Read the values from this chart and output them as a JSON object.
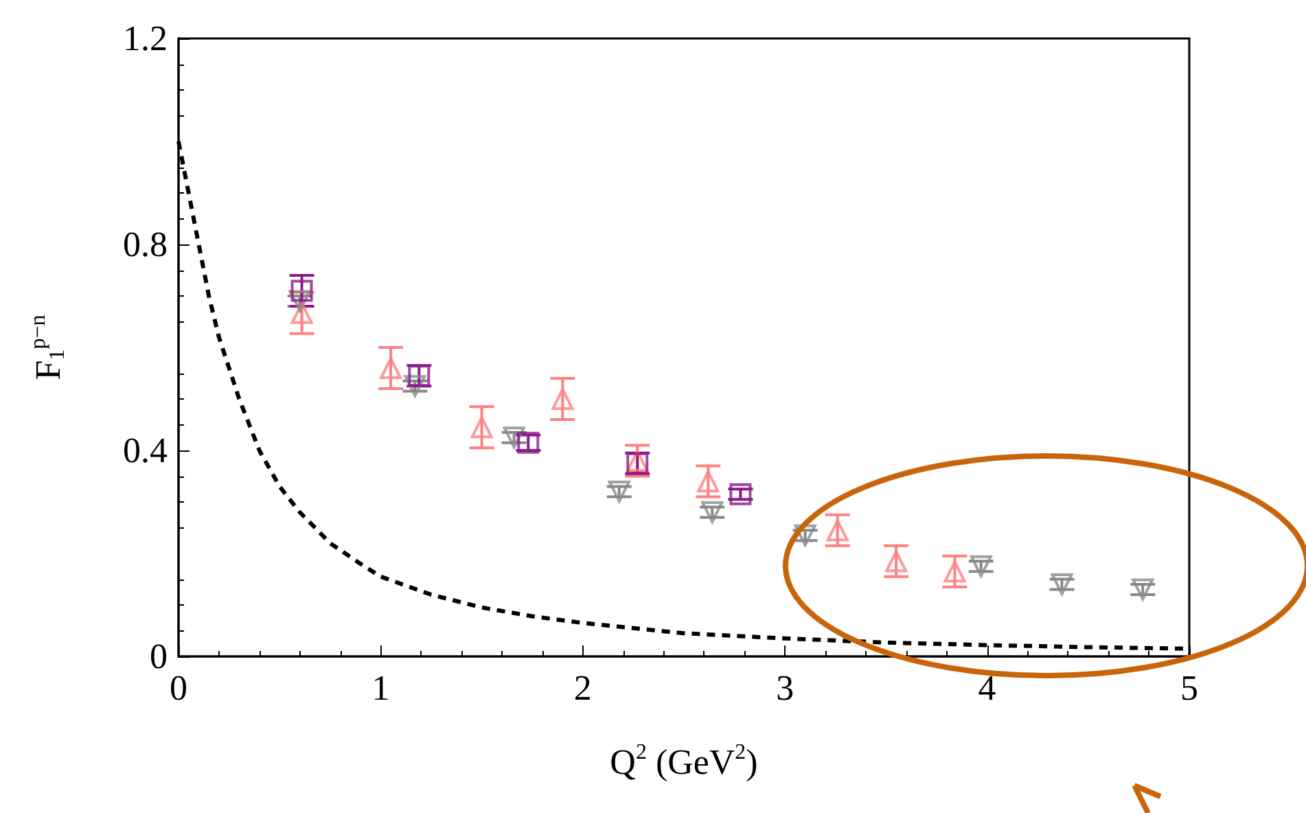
{
  "chart_data": {
    "type": "scatter",
    "xlabel": "Q$^{2}$ (GeV$^{2}$)",
    "ylabel": "F$_{1}$$^{p−n}$",
    "xlim": [
      0,
      5
    ],
    "xticks": [
      0,
      1,
      2,
      3,
      4,
      5
    ],
    "ylim": [
      0,
      1.2
    ],
    "yticks": [
      0,
      0.4,
      0.8,
      1.2
    ],
    "grid": false,
    "series": [
      {
        "type": "line",
        "color": "#000000",
        "line_style": "dashed",
        "marker": "none",
        "x": [
          0,
          0.05,
          0.1,
          0.15,
          0.2,
          0.3,
          0.4,
          0.5,
          0.6,
          0.75,
          0.9,
          1.0,
          1.25,
          1.5,
          1.75,
          2.0,
          2.5,
          3.0,
          3.5,
          4.0,
          4.5,
          5.0
        ],
        "values": [
          1.0,
          0.9,
          0.8,
          0.7,
          0.62,
          0.5,
          0.4,
          0.33,
          0.28,
          0.22,
          0.18,
          0.155,
          0.12,
          0.095,
          0.078,
          0.065,
          0.045,
          0.035,
          0.027,
          0.022,
          0.018,
          0.015
        ]
      },
      {
        "color": "#ff8080",
        "marker": "triangle",
        "x": [
          0.61,
          1.05,
          1.5,
          1.9,
          2.27,
          2.62,
          3.26,
          3.55,
          3.84
        ],
        "values": [
          0.667,
          0.56,
          0.445,
          0.5,
          0.38,
          0.34,
          0.245,
          0.185,
          0.165
        ],
        "errors": [
          0.04,
          0.04,
          0.04,
          0.04,
          0.03,
          0.03,
          0.03,
          0.03,
          0.03
        ]
      },
      {
        "color": "#888888",
        "marker": "triangle-down",
        "x": [
          0.6,
          1.17,
          1.66,
          2.18,
          2.64,
          3.1,
          3.97,
          4.37,
          4.77
        ],
        "values": [
          0.69,
          0.525,
          0.425,
          0.32,
          0.28,
          0.235,
          0.175,
          0.14,
          0.13
        ],
        "errors": [
          0.01,
          0.01,
          0.01,
          0.01,
          0.01,
          0.01,
          0.01,
          0.01,
          0.01
        ]
      },
      {
        "color": "#8b1a8b",
        "marker": "square",
        "x": [
          0.61,
          1.19,
          1.73,
          2.27,
          2.78
        ],
        "values": [
          0.71,
          0.545,
          0.415,
          0.375,
          0.315
        ],
        "errors": [
          0.03,
          0.02,
          0.015,
          0.02,
          0.01
        ]
      }
    ]
  }
}
